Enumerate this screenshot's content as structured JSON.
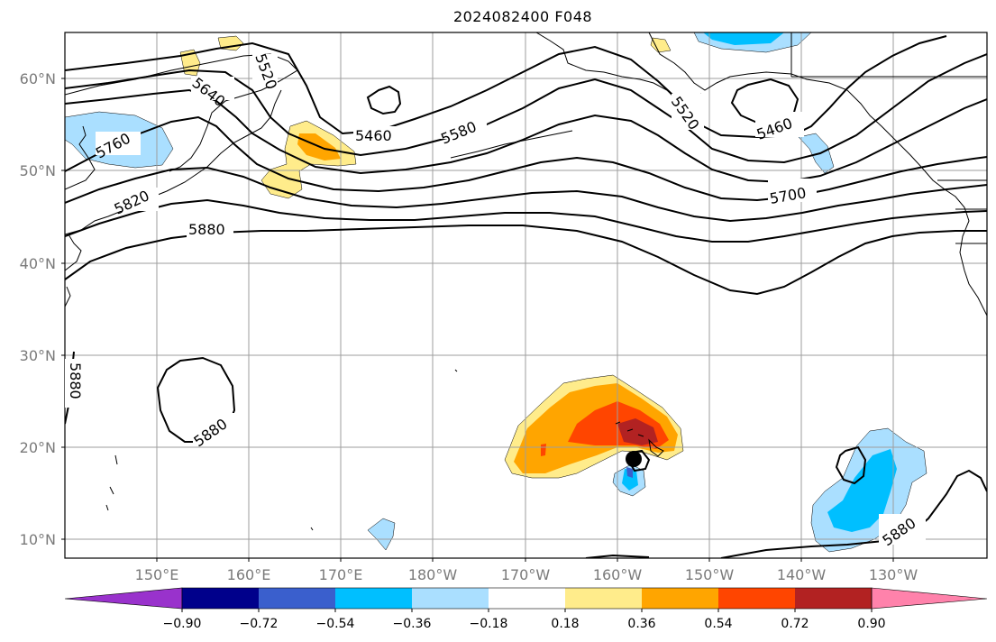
{
  "title": "2024082400 F048",
  "map": {
    "lon_labels": [
      "150°E",
      "160°E",
      "170°E",
      "180°W",
      "170°W",
      "160°W",
      "150°W",
      "140°W",
      "130°W"
    ],
    "lat_labels": [
      "60°N",
      "50°N",
      "40°N",
      "30°N",
      "20°N",
      "10°N"
    ],
    "contour_labels": [
      "5520",
      "5640",
      "5760",
      "5820",
      "5880",
      "5460",
      "5580",
      "5520",
      "5460",
      "5700",
      "5880",
      "5880",
      "5880"
    ],
    "colors": {
      "contour": "#000000",
      "grid": "#9e9e9e",
      "coast": "#000000"
    }
  },
  "colorbar": {
    "ticks": [
      "−0.90",
      "−0.72",
      "−0.54",
      "−0.36",
      "−0.18",
      "0.18",
      "0.36",
      "0.54",
      "0.72",
      "0.90"
    ],
    "colors": [
      "#9932cc",
      "#00008b",
      "#3a5fcd",
      "#00bfff",
      "#aadfff",
      "#ffffff",
      "#ffec8b",
      "#ffa500",
      "#ff4500",
      "#b22222",
      "#ff82ab"
    ]
  }
}
